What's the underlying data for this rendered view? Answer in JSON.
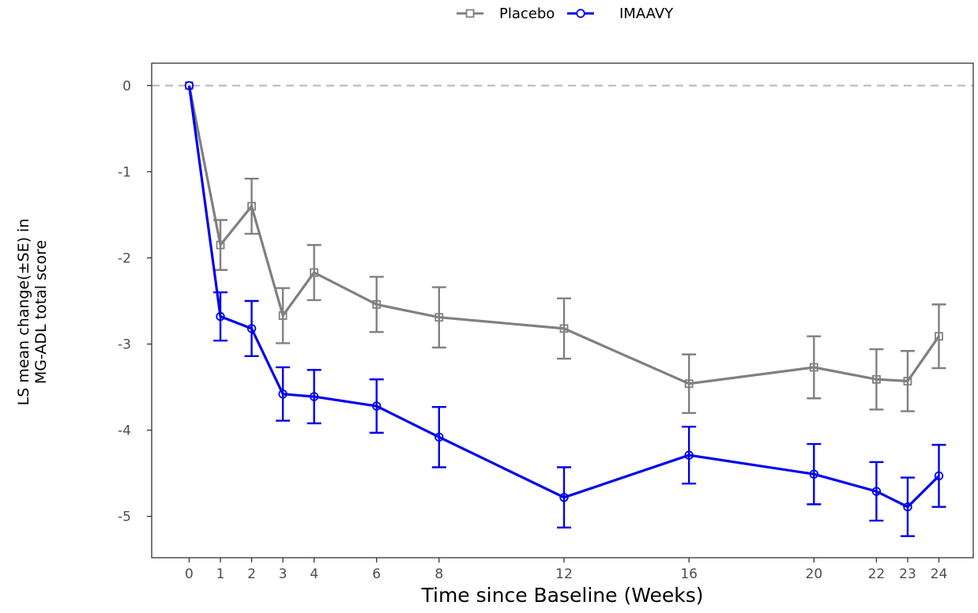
{
  "chart_data": {
    "type": "line",
    "xlabel": "Time since Baseline (Weeks)",
    "ylabel_lines": [
      "LS mean change(±SE) in",
      "MG-ADL total score"
    ],
    "xticks": [
      0,
      1,
      2,
      3,
      4,
      6,
      8,
      12,
      16,
      20,
      22,
      23,
      24
    ],
    "yticks": [
      0,
      -1,
      -2,
      -3,
      -4,
      -5
    ],
    "xlim": [
      -1.2,
      25.1
    ],
    "ylim": [
      -5.48,
      0.26
    ],
    "reference_line": 0,
    "legend_position": "top",
    "series": [
      {
        "name": "Placebo",
        "color": "#808080",
        "marker": "square",
        "x": [
          0,
          1,
          2,
          3,
          4,
          6,
          8,
          12,
          16,
          20,
          22,
          23,
          24
        ],
        "y": [
          0,
          -1.85,
          -1.4,
          -2.67,
          -2.17,
          -2.54,
          -2.69,
          -2.82,
          -3.46,
          -3.27,
          -3.41,
          -3.43,
          -2.91
        ],
        "se": [
          0,
          0.29,
          0.32,
          0.32,
          0.32,
          0.32,
          0.35,
          0.35,
          0.34,
          0.36,
          0.35,
          0.35,
          0.37
        ]
      },
      {
        "name": "IMAAVY",
        "color": "#0000ee",
        "marker": "circle",
        "x": [
          0,
          1,
          2,
          3,
          4,
          6,
          8,
          12,
          16,
          20,
          22,
          23,
          24
        ],
        "y": [
          0,
          -2.68,
          -2.82,
          -3.58,
          -3.61,
          -3.72,
          -4.08,
          -4.78,
          -4.29,
          -4.51,
          -4.71,
          -4.89,
          -4.53
        ],
        "se": [
          0,
          0.28,
          0.32,
          0.31,
          0.31,
          0.31,
          0.35,
          0.35,
          0.33,
          0.35,
          0.34,
          0.34,
          0.36
        ]
      }
    ]
  }
}
